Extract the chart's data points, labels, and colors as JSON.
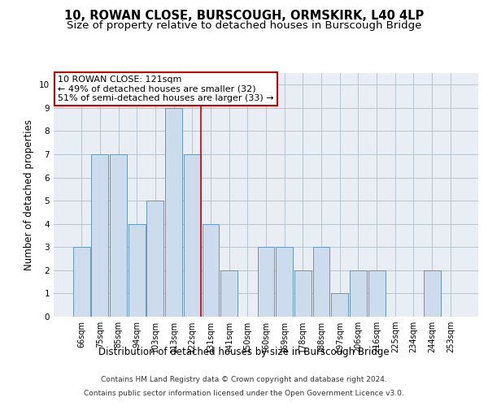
{
  "title": "10, ROWAN CLOSE, BURSCOUGH, ORMSKIRK, L40 4LP",
  "subtitle": "Size of property relative to detached houses in Burscough Bridge",
  "xlabel": "Distribution of detached houses by size in Burscough Bridge",
  "ylabel": "Number of detached properties",
  "footer_line1": "Contains HM Land Registry data © Crown copyright and database right 2024.",
  "footer_line2": "Contains public sector information licensed under the Open Government Licence v3.0.",
  "categories": [
    "66sqm",
    "75sqm",
    "85sqm",
    "94sqm",
    "103sqm",
    "113sqm",
    "122sqm",
    "131sqm",
    "141sqm",
    "150sqm",
    "160sqm",
    "169sqm",
    "178sqm",
    "188sqm",
    "197sqm",
    "206sqm",
    "216sqm",
    "225sqm",
    "234sqm",
    "244sqm",
    "253sqm"
  ],
  "values": [
    3,
    7,
    7,
    4,
    5,
    9,
    7,
    4,
    2,
    0,
    3,
    3,
    2,
    3,
    1,
    2,
    2,
    0,
    0,
    2,
    0
  ],
  "highlight_index": 6,
  "bar_color": "#ccdcec",
  "bar_edge_color": "#6699bb",
  "annotation_box_text": "10 ROWAN CLOSE: 121sqm\n← 49% of detached houses are smaller (32)\n51% of semi-detached houses are larger (33) →",
  "annotation_box_edge_color": "#cc0000",
  "highlight_line_color": "#cc0000",
  "ylim": [
    0,
    10.5
  ],
  "yticks": [
    0,
    1,
    2,
    3,
    4,
    5,
    6,
    7,
    8,
    9,
    10
  ],
  "background_color": "#e8eef4",
  "grid_color": "#b0bec8",
  "title_fontsize": 10.5,
  "subtitle_fontsize": 9.5,
  "ylabel_fontsize": 8.5,
  "xlabel_fontsize": 8.5,
  "tick_fontsize": 7,
  "annotation_fontsize": 8,
  "footer_fontsize": 6.5
}
